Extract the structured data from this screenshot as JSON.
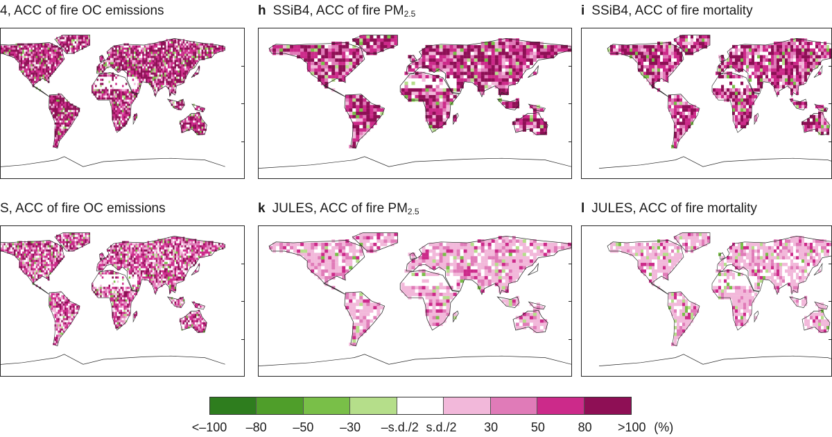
{
  "panels": [
    {
      "id": "g",
      "letter": "",
      "title": "4, ACC of fire OC emissions",
      "sub": "",
      "style": "oc1"
    },
    {
      "id": "h",
      "letter": "h",
      "title": "SSiB4, ACC of fire PM",
      "sub": "2.5",
      "style": "pm1"
    },
    {
      "id": "i",
      "letter": "i",
      "title": "SSiB4, ACC of fire mortality",
      "sub": "",
      "style": "mort1"
    },
    {
      "id": "j",
      "letter": "",
      "title": "S, ACC of fire OC emissions",
      "sub": "",
      "style": "oc2"
    },
    {
      "id": "k",
      "letter": "k",
      "title": "JULES, ACC of fire PM",
      "sub": "2.5",
      "style": "pm2"
    },
    {
      "id": "l",
      "letter": "l",
      "title": "JULES, ACC of fire mortality",
      "sub": "",
      "style": "mort2"
    }
  ],
  "legend": {
    "colors": [
      "#2e7d1e",
      "#4f9e2a",
      "#79bf48",
      "#b5de8a",
      "#ffffff",
      "#f2b8da",
      "#e07bb8",
      "#cc2a8a",
      "#8e0f55"
    ],
    "labels": [
      "<–100",
      "–80",
      "–50",
      "–30",
      "–s.d./2",
      "s.d./2",
      "30",
      "50",
      "80",
      ">100"
    ],
    "unit": "(%)"
  }
}
